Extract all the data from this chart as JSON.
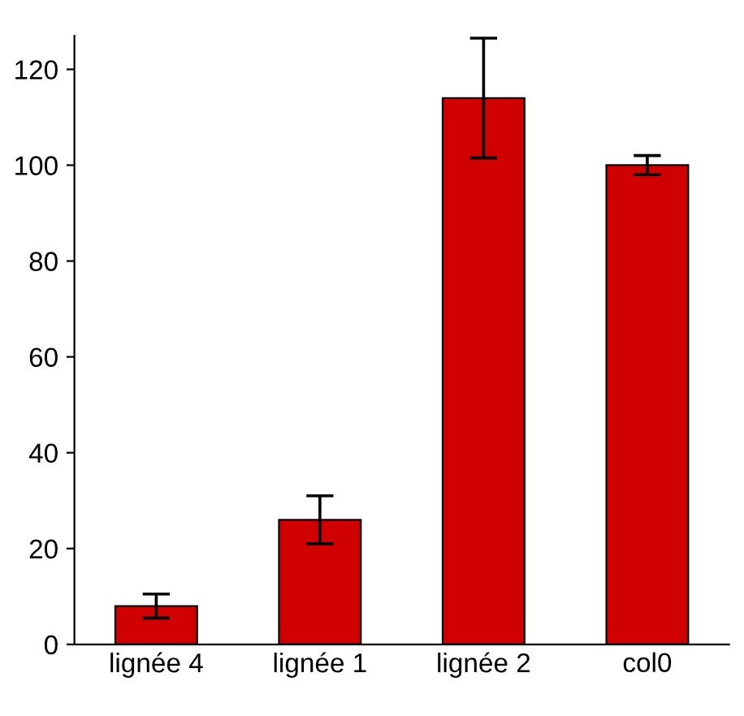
{
  "chart_data": {
    "type": "bar",
    "categories": [
      "lignée 4",
      "lignée 1",
      "lignée 2",
      "col0"
    ],
    "values": [
      8,
      26,
      114,
      100
    ],
    "errors": [
      2.5,
      5,
      12.5,
      2
    ],
    "color": "#d00000",
    "ylim": [
      0,
      127
    ],
    "yticks": [
      0,
      20,
      40,
      60,
      80,
      100,
      120
    ],
    "grid": false,
    "legend": false
  }
}
